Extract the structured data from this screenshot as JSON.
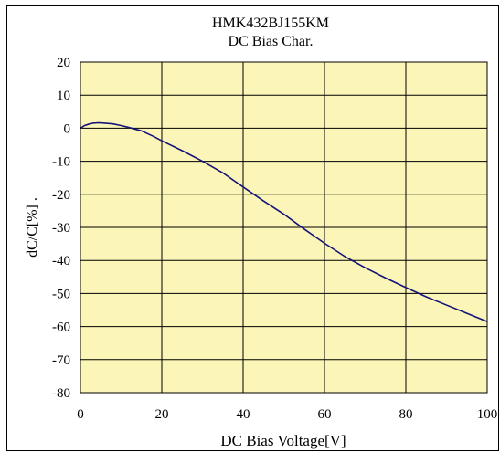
{
  "chart_data": {
    "type": "line",
    "title": "HMK432BJ155KM",
    "subtitle": "DC Bias Char.",
    "xlabel": "DC Bias Voltage[V]",
    "ylabel": "dC/C[%] .",
    "xlim": [
      0,
      100
    ],
    "ylim": [
      -80,
      20
    ],
    "x_ticks": [
      "0",
      "20",
      "40",
      "60",
      "80",
      "100"
    ],
    "y_ticks": [
      "20",
      "10",
      "0",
      "-10",
      "-20",
      "-30",
      "-40",
      "-50",
      "-60",
      "-70",
      "-80"
    ],
    "grid": true,
    "legend": "none",
    "colors": {
      "plot_bg": "#fcf5b8",
      "line": "#141478",
      "grid": "#000000"
    },
    "series": [
      {
        "points": [
          [
            0,
            0
          ],
          [
            1,
            0.8
          ],
          [
            2,
            1.2
          ],
          [
            3,
            1.5
          ],
          [
            4,
            1.6
          ],
          [
            5,
            1.6
          ],
          [
            6,
            1.5
          ],
          [
            7,
            1.4
          ],
          [
            8,
            1.3
          ],
          [
            10,
            0.8
          ],
          [
            12,
            0.2
          ],
          [
            15,
            -0.8
          ],
          [
            18,
            -2.5
          ],
          [
            20,
            -3.8
          ],
          [
            25,
            -6.8
          ],
          [
            30,
            -10
          ],
          [
            35,
            -13.5
          ],
          [
            40,
            -17.8
          ],
          [
            45,
            -22
          ],
          [
            50,
            -26
          ],
          [
            55,
            -30.5
          ],
          [
            60,
            -34.8
          ],
          [
            65,
            -38.8
          ],
          [
            70,
            -42.2
          ],
          [
            75,
            -45.3
          ],
          [
            80,
            -48.2
          ],
          [
            85,
            -51
          ],
          [
            90,
            -53.5
          ],
          [
            95,
            -56
          ],
          [
            100,
            -58.5
          ]
        ]
      }
    ]
  }
}
